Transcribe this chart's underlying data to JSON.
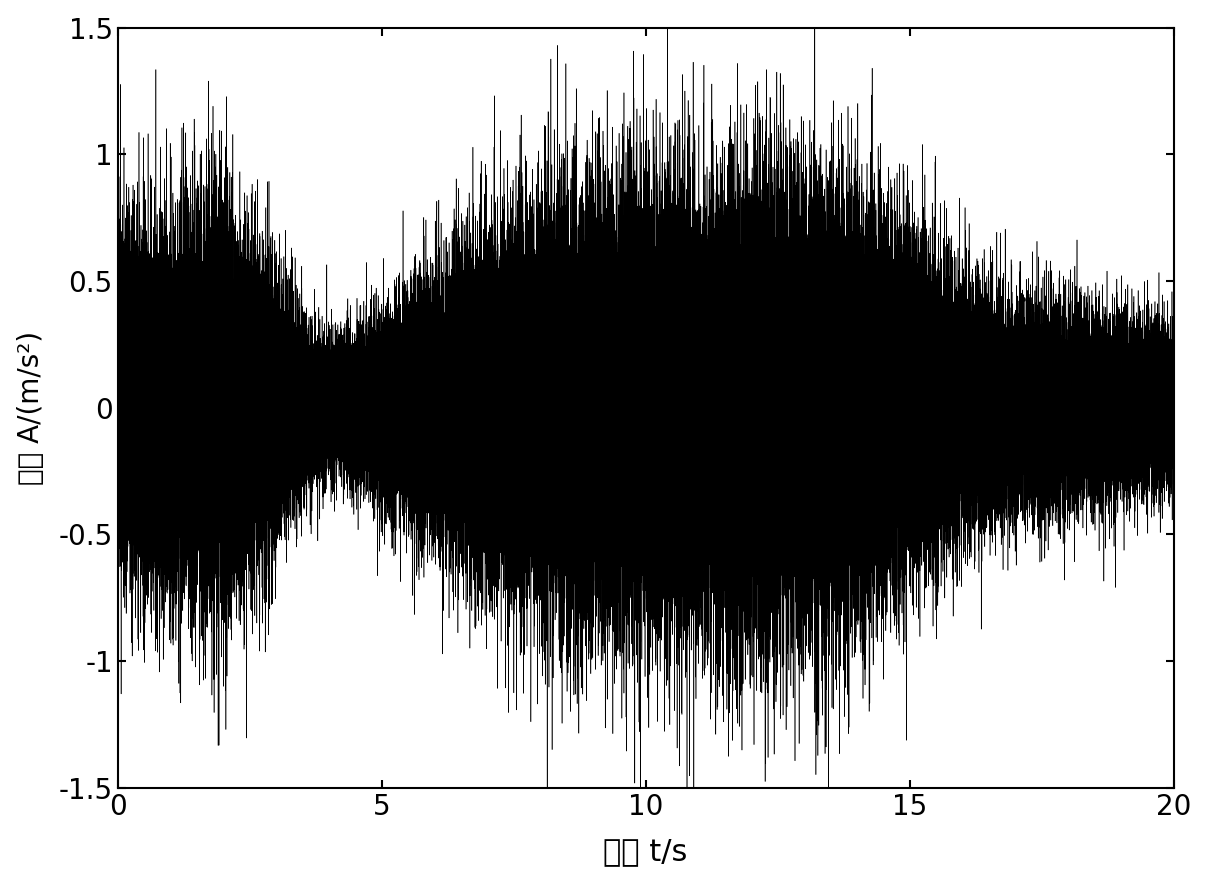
{
  "xlim": [
    0,
    20
  ],
  "ylim": [
    -1.5,
    1.5
  ],
  "xticks": [
    0,
    5,
    10,
    15,
    20
  ],
  "yticks": [
    -1.5,
    -1.0,
    -0.5,
    0,
    0.5,
    1.0,
    1.5
  ],
  "xlabel": "时间 t/s",
  "ylabel": "幅值 A/(m/s²)",
  "line_color": "#000000",
  "line_width": 0.4,
  "background_color": "#ffffff",
  "duration": 20.0,
  "sample_rate": 4000,
  "seed": 42,
  "xlabel_fontsize": 22,
  "ylabel_fontsize": 20,
  "tick_fontsize": 20,
  "envelope_segments": {
    "t0": 0,
    "t1": 2.5,
    "t2": 4.5,
    "t3": 7.0,
    "t4": 13.5,
    "t5": 20.0,
    "amp0": 0.42,
    "amp1": 0.42,
    "amp2": 0.18,
    "amp3": 0.42,
    "amp4": 0.52,
    "amp5": 0.18
  }
}
